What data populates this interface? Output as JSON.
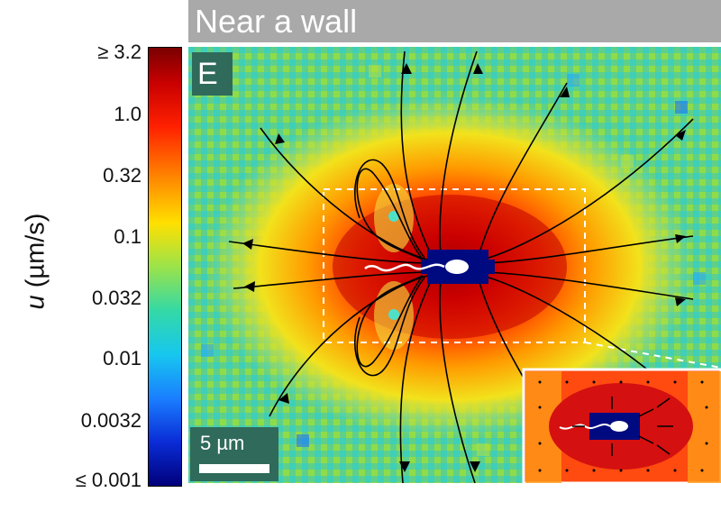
{
  "title": "Near a wall",
  "panel_label": "E",
  "scale_bar_label": "5 µm",
  "colorbar": {
    "label_var": "u",
    "label_unit": " (µm/s)",
    "ticks": [
      "≥ 3.2",
      "1.0",
      "0.32",
      "0.1",
      "0.032",
      "0.01",
      "0.0032",
      "≤ 0.001"
    ],
    "colormap": "jet",
    "scale": "log"
  },
  "colors": {
    "title_bar": "#a9a9a9",
    "label_box": "#2f6a5a",
    "cell_body": "#000a80",
    "streamlines": "#000000",
    "inset_border": "#ffffff"
  },
  "icons": [
    "bacterium-cell",
    "flagellum",
    "streamline-arrows",
    "dashed-zoom-box"
  ]
}
